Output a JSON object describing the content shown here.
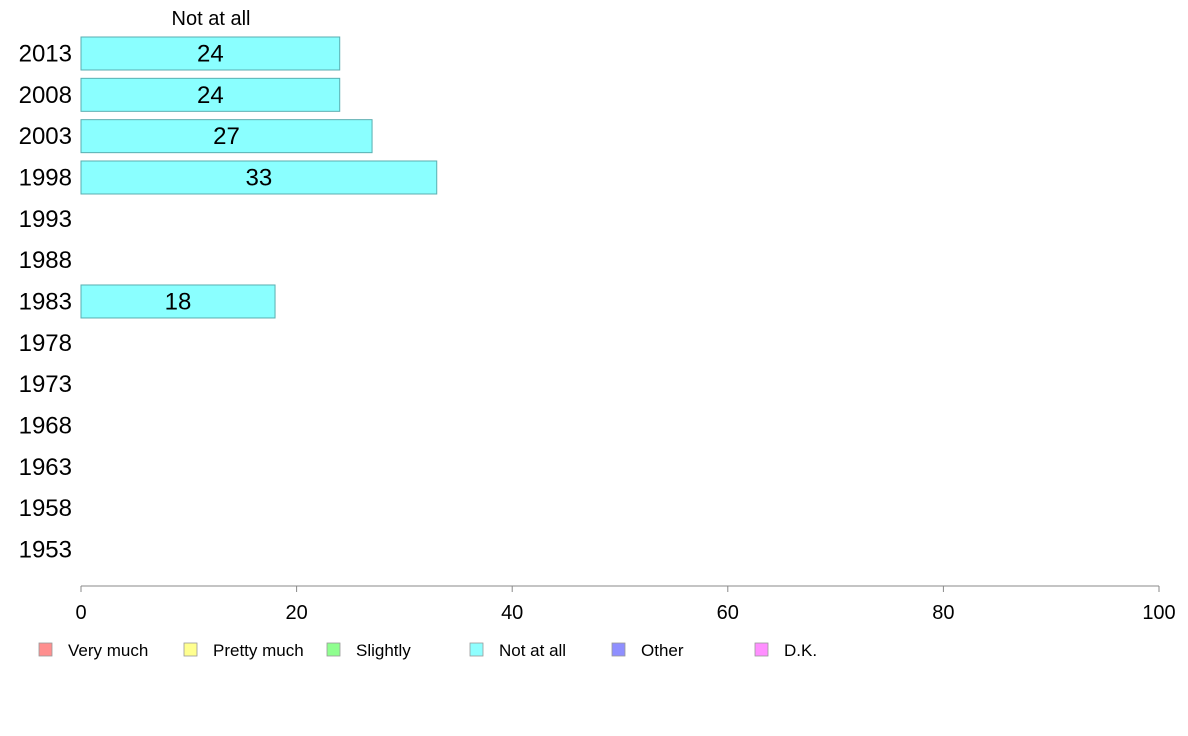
{
  "chart_data": {
    "type": "bar",
    "orientation": "horizontal",
    "title": "Not at all",
    "categories": [
      "2013",
      "2008",
      "2003",
      "1998",
      "1993",
      "1988",
      "1983",
      "1978",
      "1973",
      "1968",
      "1963",
      "1958",
      "1953"
    ],
    "series": [
      {
        "name": "Not at all",
        "values": [
          24,
          24,
          27,
          33,
          null,
          null,
          18,
          null,
          null,
          null,
          null,
          null,
          null
        ]
      }
    ],
    "value_labels": [
      "24",
      "24",
      "27",
      "33",
      "",
      "",
      "18",
      "",
      "",
      "",
      "",
      "",
      ""
    ],
    "xlim": [
      0,
      100
    ],
    "xticks": [
      0,
      20,
      40,
      60,
      80,
      100
    ],
    "grid": false,
    "legend_position": "bottom",
    "legend": [
      {
        "label": "Very much",
        "color": "#ff8f8f"
      },
      {
        "label": "Pretty much",
        "color": "#ffff8f"
      },
      {
        "label": "Slightly",
        "color": "#8fff8f"
      },
      {
        "label": "Not at all",
        "color": "#8fffff"
      },
      {
        "label": "Other",
        "color": "#8f8fff"
      },
      {
        "label": "D.K.",
        "color": "#ff8fff"
      }
    ],
    "bar_color": "#8affff",
    "bar_stroke": "#5aaeb0",
    "axis_color": "#888888"
  }
}
